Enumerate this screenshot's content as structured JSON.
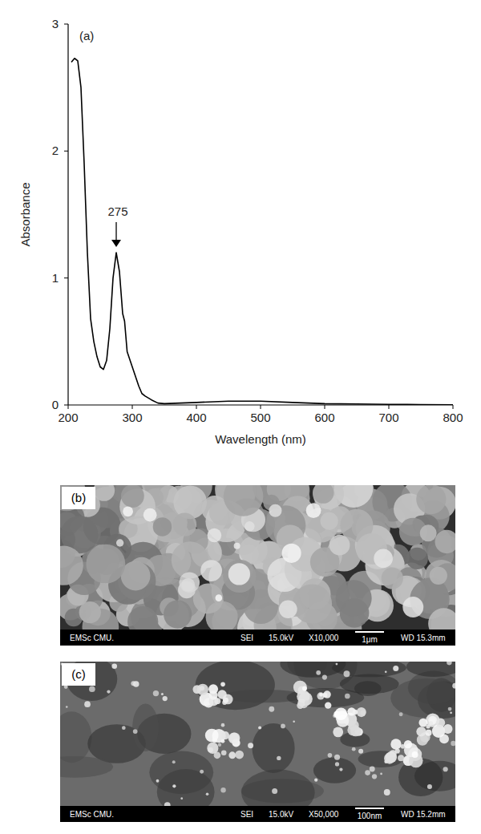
{
  "chart_data": {
    "type": "line",
    "title": "(a)",
    "x_label": "Wavelength (nm)",
    "y_label": "Absorbance",
    "x": [
      205,
      210,
      215,
      220,
      225,
      230,
      235,
      240,
      245,
      250,
      255,
      260,
      265,
      270,
      275,
      280,
      285,
      288,
      292,
      300,
      310,
      315,
      320,
      330,
      340,
      350,
      400,
      450,
      500,
      550,
      600,
      650,
      700,
      750,
      800
    ],
    "values": [
      2.7,
      2.73,
      2.71,
      2.5,
      1.9,
      1.2,
      0.68,
      0.5,
      0.38,
      0.3,
      0.28,
      0.35,
      0.6,
      1.0,
      1.2,
      1.05,
      0.72,
      0.66,
      0.42,
      0.3,
      0.15,
      0.09,
      0.07,
      0.04,
      0.015,
      0.01,
      0.02,
      0.03,
      0.03,
      0.02,
      0.01,
      0.008,
      0.005,
      0.003,
      0.002
    ],
    "color": "#000000",
    "xlim": [
      200,
      800
    ],
    "xticks": [
      200,
      300,
      400,
      500,
      600,
      700,
      800
    ],
    "ylim": [
      0,
      3
    ],
    "yticks": [
      0,
      1,
      2,
      3
    ],
    "grid": false,
    "annotations": [
      {
        "text": "275",
        "x": 275,
        "y": 1.2
      }
    ]
  },
  "micrographs": [
    {
      "label": "(b)",
      "lab": "EMSc CMU.",
      "detector": "SEI",
      "voltage": "15.0kV",
      "magnification": "X10,000",
      "scale_bar": "1μm",
      "working_distance": "WD 15.3mm"
    },
    {
      "label": "(c)",
      "lab": "EMSc CMU.",
      "detector": "SEI",
      "voltage": "15.0kV",
      "magnification": "X50,000",
      "scale_bar": "100nm",
      "working_distance": "WD 15.2mm"
    }
  ]
}
